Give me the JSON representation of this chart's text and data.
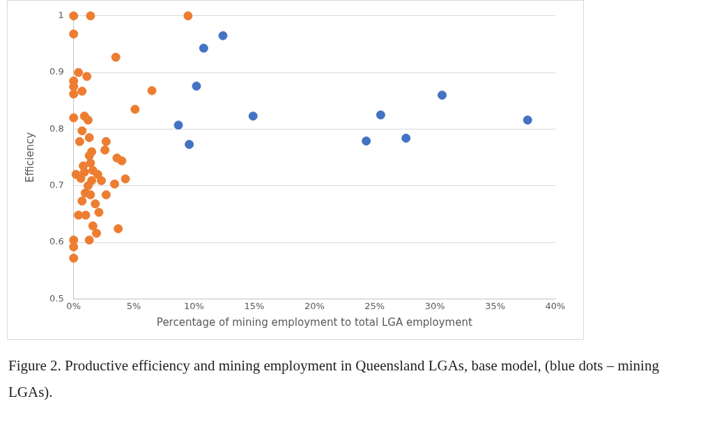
{
  "chart_data": {
    "type": "scatter",
    "xlabel": "Percentage of mining employment to total LGA employment",
    "ylabel": "Efficiency",
    "xlim": [
      0,
      0.4
    ],
    "xticks": [
      {
        "value": 0,
        "label": "0%"
      },
      {
        "value": 0.05,
        "label": "5%"
      },
      {
        "value": 0.1,
        "label": "10%"
      },
      {
        "value": 0.15,
        "label": "15%"
      },
      {
        "value": 0.2,
        "label": "20%"
      },
      {
        "value": 0.25,
        "label": "25%"
      },
      {
        "value": 0.3,
        "label": "30%"
      },
      {
        "value": 0.35,
        "label": "35%"
      },
      {
        "value": 0.4,
        "label": "40%"
      }
    ],
    "ylim": [
      0.5,
      1
    ],
    "yticks": [
      0.5,
      0.6,
      0.7,
      0.8,
      0.9,
      1
    ],
    "grid": "y",
    "legend": false,
    "marker": "circle",
    "series": [
      {
        "color": "#ed7d31",
        "x": [
          0,
          0.014,
          0.095,
          0,
          0.035,
          0.004,
          0.011,
          0,
          0,
          0,
          0.007,
          0.065,
          0.051,
          0,
          0.009,
          0.012,
          0.007,
          0.013,
          0.005,
          0.027,
          0.026,
          0.015,
          0.013,
          0.036,
          0.04,
          0.008,
          0.002,
          0.009,
          0.016,
          0.02,
          0.015,
          0.023,
          0.006,
          0.034,
          0.043,
          0.027,
          0.0096,
          0.014,
          0.007,
          0.018,
          0.021,
          0.004,
          0.01,
          0.016,
          0.019,
          0.037,
          0.013,
          0,
          0,
          0,
          0.014,
          0.012
        ],
        "values": [
          1,
          1,
          1,
          0.968,
          0.927,
          0.9,
          0.893,
          0.885,
          0.875,
          0.862,
          0.867,
          0.868,
          0.835,
          0.82,
          0.823,
          0.816,
          0.797,
          0.785,
          0.778,
          0.778,
          0.763,
          0.76,
          0.753,
          0.749,
          0.744,
          0.735,
          0.72,
          0.724,
          0.727,
          0.72,
          0.709,
          0.709,
          0.713,
          0.703,
          0.712,
          0.684,
          0.687,
          0.684,
          0.673,
          0.668,
          0.653,
          0.648,
          0.648,
          0.629,
          0.616,
          0.624,
          0.604,
          0.604,
          0.592,
          0.572,
          0.74,
          0.7
        ]
      },
      {
        "color": "#4472c4",
        "x": [
          0.087,
          0.096,
          0.102,
          0.108,
          0.124,
          0.149,
          0.243,
          0.255,
          0.276,
          0.306,
          0.377
        ],
        "values": [
          0.807,
          0.773,
          0.876,
          0.943,
          0.965,
          0.823,
          0.779,
          0.825,
          0.784,
          0.86,
          0.816
        ]
      }
    ],
    "annotations": [
      "Figure 2. Productive efficiency and mining employment in Queensland LGAs, base model, (blue dots – mining LGAs)."
    ]
  }
}
